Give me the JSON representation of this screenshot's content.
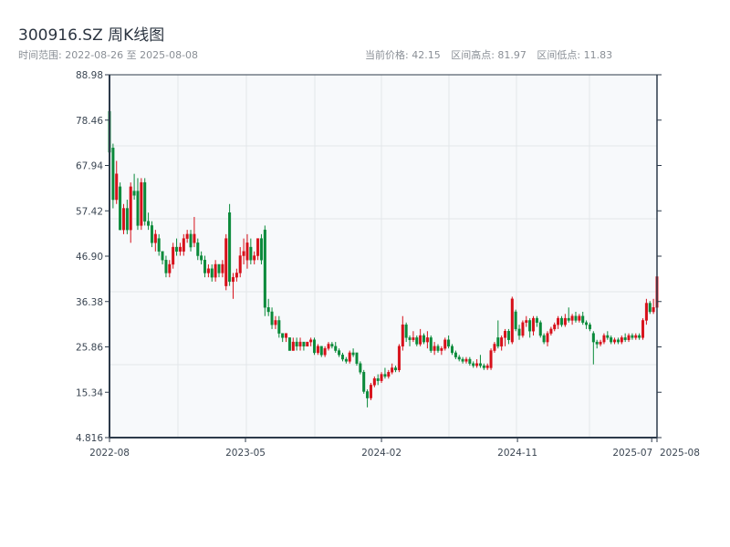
{
  "header": {
    "title": "300916.SZ 周K线图",
    "range_label": "时间范围: 2022-08-26 至 2025-08-08",
    "current_price": "当前价格: 42.15",
    "range_high": "区间高点: 81.97",
    "range_low": "区间低点: 11.83"
  },
  "chart_data": {
    "type": "candlestick",
    "title": "300916.SZ 周K线图",
    "period": "weekly",
    "start_date": "2022-08-26",
    "end_date": "2025-08-08",
    "ylim": [
      4.816,
      88.98
    ],
    "y_ticks": [
      "88.98",
      "78.46",
      "67.94",
      "57.42",
      "46.90",
      "36.38",
      "25.86",
      "15.34",
      "4.816"
    ],
    "x_ticks": [
      "2022-08",
      "2023-05",
      "2024-02",
      "2024-11",
      "2025-07",
      "2025-08"
    ],
    "grid": true,
    "colors": {
      "up": "#d7101a",
      "down": "#0a8a3a",
      "axis": "#2d3a4a",
      "grid": "#e3e6ea",
      "plot_bg": "#f7f9fb"
    },
    "ohlc_fields": [
      "open",
      "high",
      "low",
      "close"
    ],
    "candles": [
      [
        80.5,
        81.97,
        70,
        71
      ],
      [
        72,
        73,
        58,
        60
      ],
      [
        60,
        69,
        59,
        66
      ],
      [
        63,
        64,
        53,
        53
      ],
      [
        53,
        59,
        52,
        58
      ],
      [
        58,
        60,
        52,
        53
      ],
      [
        53,
        64,
        50,
        63
      ],
      [
        62,
        66,
        60,
        61
      ],
      [
        62,
        65,
        53,
        54
      ],
      [
        54,
        65,
        53,
        64
      ],
      [
        64,
        65,
        54,
        55
      ],
      [
        55,
        57,
        53,
        54
      ],
      [
        54,
        55,
        49,
        50
      ],
      [
        50,
        53,
        48,
        52
      ],
      [
        51,
        52,
        47,
        48
      ],
      [
        48,
        48,
        45,
        46
      ],
      [
        46,
        47,
        42,
        43
      ],
      [
        43,
        46,
        42,
        45
      ],
      [
        45,
        50,
        44,
        49
      ],
      [
        49,
        51,
        47,
        48
      ],
      [
        48,
        50,
        47,
        49
      ],
      [
        48,
        52,
        47,
        51
      ],
      [
        51,
        53,
        50,
        52
      ],
      [
        52,
        53,
        48,
        49
      ],
      [
        50,
        56,
        49,
        52
      ],
      [
        50,
        51,
        46,
        47
      ],
      [
        47,
        48,
        45,
        46
      ],
      [
        46,
        47,
        42,
        43
      ],
      [
        43,
        45,
        42,
        44
      ],
      [
        44,
        45,
        41,
        42
      ],
      [
        42,
        46,
        41,
        45
      ],
      [
        45,
        45,
        42,
        43
      ],
      [
        43,
        46,
        42,
        45
      ],
      [
        40,
        52,
        39,
        51
      ],
      [
        57,
        59,
        40,
        41
      ],
      [
        41,
        43,
        37,
        42
      ],
      [
        42,
        44,
        41,
        43
      ],
      [
        43,
        49,
        42,
        47
      ],
      [
        47,
        51,
        45,
        48
      ],
      [
        46,
        52,
        44,
        50
      ],
      [
        49,
        51,
        45,
        46
      ],
      [
        46,
        48,
        45,
        47
      ],
      [
        47,
        51,
        46,
        51
      ],
      [
        51,
        52,
        45,
        46
      ],
      [
        53,
        54,
        33,
        35
      ],
      [
        35,
        37,
        33,
        34
      ],
      [
        34,
        35,
        30,
        31
      ],
      [
        31,
        33,
        30,
        32
      ],
      [
        32,
        33,
        28,
        29
      ],
      [
        29,
        29,
        27,
        28
      ],
      [
        28,
        29,
        27,
        29
      ],
      [
        28,
        28,
        25,
        25
      ],
      [
        25,
        28,
        25,
        27
      ],
      [
        27,
        28,
        25,
        26
      ],
      [
        26,
        28,
        25,
        27
      ],
      [
        27,
        27,
        25,
        26
      ],
      [
        26,
        27,
        26,
        27
      ],
      [
        27,
        28,
        26,
        27.5
      ],
      [
        27.5,
        28,
        24,
        24.5
      ],
      [
        24.5,
        26.5,
        24,
        26
      ],
      [
        26,
        26,
        23.5,
        24
      ],
      [
        24,
        26,
        23.5,
        25.5
      ],
      [
        25.5,
        27,
        25,
        26.5
      ],
      [
        26.5,
        27,
        25.5,
        26
      ],
      [
        26,
        27,
        24.5,
        25
      ],
      [
        25,
        25.5,
        23.5,
        24
      ],
      [
        24,
        24.5,
        22.5,
        23
      ],
      [
        23,
        23.5,
        22,
        22.5
      ],
      [
        22.5,
        25,
        22,
        24.5
      ],
      [
        24.5,
        25.5,
        23.5,
        24
      ],
      [
        24.5,
        24.5,
        21.5,
        22
      ],
      [
        22,
        22.5,
        19.5,
        20
      ],
      [
        20,
        20.5,
        15,
        15.5
      ],
      [
        15.5,
        16,
        11.83,
        14
      ],
      [
        14,
        17.5,
        13.5,
        17
      ],
      [
        17,
        19,
        16.5,
        18.5
      ],
      [
        18.5,
        19.5,
        17,
        18
      ],
      [
        18,
        20,
        17.5,
        19.5
      ],
      [
        19.5,
        21,
        18.5,
        19
      ],
      [
        19,
        20.5,
        18.5,
        20
      ],
      [
        20,
        22,
        19.5,
        21
      ],
      [
        21,
        21.5,
        20,
        20.5
      ],
      [
        20.5,
        26.5,
        20,
        26
      ],
      [
        26,
        33,
        25,
        31
      ],
      [
        31,
        31.5,
        27,
        28
      ],
      [
        28,
        28.5,
        26,
        27.5
      ],
      [
        27.5,
        29.5,
        27,
        28
      ],
      [
        28,
        28.5,
        26,
        26.5
      ],
      [
        26.5,
        30,
        26,
        28.5
      ],
      [
        28.5,
        29,
        26.5,
        27
      ],
      [
        27,
        29.5,
        25.5,
        28
      ],
      [
        28,
        28.5,
        24.5,
        25
      ],
      [
        25,
        27,
        24,
        26
      ],
      [
        26,
        26.5,
        24.5,
        25
      ],
      [
        25,
        26,
        24,
        25.5
      ],
      [
        25.5,
        28,
        25,
        27.5
      ],
      [
        27.5,
        28.5,
        25.5,
        26
      ],
      [
        26,
        26.5,
        24,
        24.5
      ],
      [
        24.5,
        25,
        23,
        23.5
      ],
      [
        23.5,
        24,
        22.5,
        23
      ],
      [
        23,
        23.5,
        22,
        22.5
      ],
      [
        22.5,
        23.5,
        22,
        23
      ],
      [
        23,
        23.5,
        21.5,
        22
      ],
      [
        22,
        22.5,
        21,
        21.5
      ],
      [
        21.5,
        23,
        21,
        22
      ],
      [
        22,
        24,
        21,
        21.5
      ],
      [
        21.5,
        22,
        20.5,
        21
      ],
      [
        21,
        22,
        20.5,
        21.5
      ],
      [
        21,
        25.5,
        20.5,
        25
      ],
      [
        25,
        27,
        24.5,
        26.5
      ],
      [
        28,
        32,
        25.5,
        26
      ],
      [
        26,
        28.5,
        25,
        28
      ],
      [
        28,
        30,
        26,
        29.5
      ],
      [
        29.5,
        30,
        26.5,
        27.5
      ],
      [
        27,
        37.5,
        26.5,
        37
      ],
      [
        34,
        34.5,
        29.5,
        30
      ],
      [
        30,
        31,
        27.5,
        28.5
      ],
      [
        28.5,
        32,
        28,
        31.5
      ],
      [
        31.5,
        33,
        30.5,
        32
      ],
      [
        32,
        32.5,
        28,
        29.5
      ],
      [
        29.5,
        33,
        28.5,
        32.5
      ],
      [
        32.5,
        33,
        30.5,
        31.5
      ],
      [
        31.5,
        32,
        28,
        28.5
      ],
      [
        28.5,
        29,
        26.5,
        27
      ],
      [
        27,
        29.5,
        26,
        29
      ],
      [
        29,
        30.5,
        28.5,
        30
      ],
      [
        30,
        31.5,
        29.5,
        31
      ],
      [
        31,
        33,
        30,
        32.5
      ],
      [
        32.5,
        33,
        30.5,
        31
      ],
      [
        31,
        33.5,
        30.5,
        32.5
      ],
      [
        32.5,
        35,
        31.5,
        32
      ],
      [
        32,
        33.5,
        31,
        33
      ],
      [
        33,
        34,
        31.5,
        32
      ],
      [
        32,
        33.5,
        31.5,
        33
      ],
      [
        33,
        34,
        31,
        31.5
      ],
      [
        31.5,
        32,
        30,
        31
      ],
      [
        31,
        31.5,
        29.5,
        30
      ],
      [
        29,
        29.5,
        21.8,
        27
      ],
      [
        27,
        27.5,
        25.5,
        26.5
      ],
      [
        26.5,
        27.5,
        26,
        27
      ],
      [
        27,
        29,
        26.5,
        28.5
      ],
      [
        28.5,
        29.5,
        27.5,
        28
      ],
      [
        28,
        28.5,
        26.5,
        27
      ],
      [
        27,
        28,
        26.5,
        27.5
      ],
      [
        27.5,
        28,
        26.5,
        27
      ],
      [
        27,
        28.5,
        26.5,
        28
      ],
      [
        28,
        29,
        27,
        27.5
      ],
      [
        27.5,
        29,
        27,
        28.5
      ],
      [
        28.5,
        29,
        27.5,
        28
      ],
      [
        28,
        29,
        27.5,
        28.5
      ],
      [
        28.5,
        29,
        27.5,
        28
      ],
      [
        28,
        32.5,
        27.5,
        32
      ],
      [
        32,
        37,
        31,
        36
      ],
      [
        36,
        36.5,
        33.5,
        34
      ],
      [
        34,
        37,
        33.5,
        35
      ],
      [
        35,
        45,
        34.5,
        42.15
      ]
    ]
  }
}
